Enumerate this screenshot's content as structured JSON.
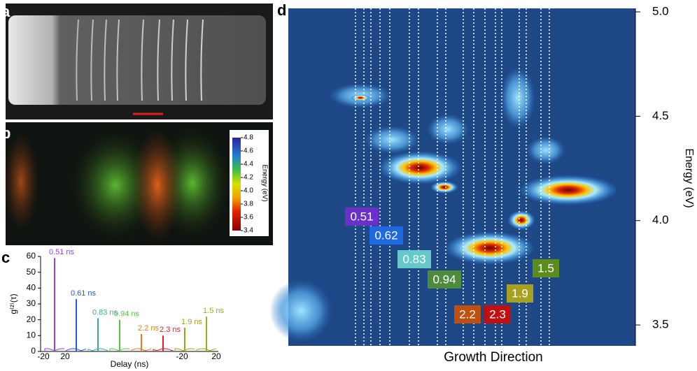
{
  "panel_labels": [
    "a",
    "b",
    "c",
    "d"
  ],
  "chart_data": [
    {
      "type": "spikes",
      "ylabel": "g⁽²⁾(τ)",
      "xlabel": "Delay (ns)",
      "ylim": [
        0,
        60
      ],
      "yticks": [
        0,
        10,
        20,
        30,
        40,
        50,
        60
      ],
      "xtick_labels": [
        "-20",
        "20",
        "-20",
        "20"
      ],
      "series": [
        {
          "name": "0.51 ns",
          "color": "#9b3fe0",
          "values": [
            59
          ]
        },
        {
          "name": "0.61 ns",
          "color": "#2a52e0",
          "values": [
            33
          ]
        },
        {
          "name": "0.83 ns",
          "color": "#3aa8a0",
          "values": [
            21
          ]
        },
        {
          "name": "0.94 ns",
          "color": "#5cc050",
          "values": [
            20
          ]
        },
        {
          "name": "2.2 ns",
          "color": "#f07a20",
          "values": [
            11
          ]
        },
        {
          "name": "2.3 ns",
          "color": "#e02020",
          "values": [
            10
          ]
        },
        {
          "name": "1.9 ns",
          "color": "#a0a020",
          "values": [
            15
          ]
        },
        {
          "name": "1.5 ns",
          "color": "#90b020",
          "values": [
            22
          ]
        }
      ]
    },
    {
      "type": "heatmap",
      "xlabel": "Growth Direction",
      "ylabel": "Energy (eV)",
      "ylim": [
        3.4,
        5.0
      ],
      "yticks": [
        3.5,
        {
          "value": 4,
          "label": "4.0"
        },
        4.5,
        {
          "value": 5,
          "label": "5.0"
        }
      ],
      "annotations": [
        {
          "text": "0.51",
          "color": "#6b30c8"
        },
        {
          "text": "0.62",
          "color": "#1f6ae0"
        },
        {
          "text": "0.83",
          "color": "#66c8c8"
        },
        {
          "text": "0.94",
          "color": "#4c8c3c"
        },
        {
          "text": "1.5",
          "color": "#5c8c1c"
        },
        {
          "text": "1.9",
          "color": "#a8a020"
        },
        {
          "text": "2.2",
          "color": "#c05010"
        },
        {
          "text": "2.3",
          "color": "#c01010"
        }
      ]
    },
    {
      "type": "colorbar",
      "label": "Energy (eV)",
      "ylim": [
        3.4,
        4.8
      ],
      "yticks": [
        3.4,
        3.6,
        3.8,
        {
          "value": 4,
          "label": "4.0"
        },
        4.2,
        4.4,
        4.6,
        4.8
      ]
    }
  ]
}
